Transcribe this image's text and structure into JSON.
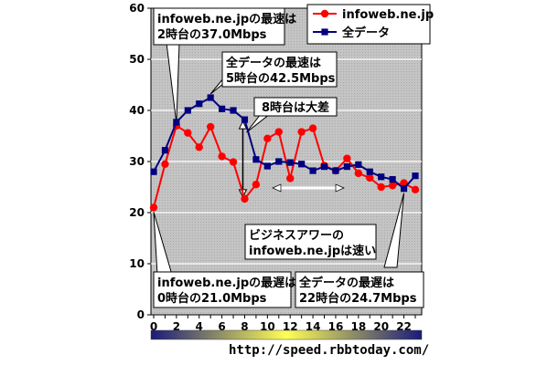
{
  "chart_data": {
    "type": "line",
    "x": [
      0,
      1,
      2,
      3,
      4,
      5,
      6,
      7,
      8,
      9,
      10,
      11,
      12,
      13,
      14,
      15,
      16,
      17,
      18,
      19,
      20,
      21,
      22,
      23
    ],
    "ylim": [
      0,
      60
    ],
    "xlim": [
      0,
      23
    ],
    "y_ticks": [
      0,
      10,
      20,
      30,
      40,
      50,
      60
    ],
    "x_ticks": [
      0,
      2,
      4,
      6,
      8,
      10,
      12,
      14,
      16,
      18,
      20,
      22
    ],
    "grid": true,
    "legend_position": "top-right",
    "series": [
      {
        "name": "infoweb.ne.jp",
        "color": "#ff0000",
        "marker": "circle",
        "values": [
          21.0,
          29.5,
          37.0,
          35.6,
          32.8,
          36.8,
          31.0,
          29.9,
          22.7,
          25.5,
          34.5,
          35.8,
          26.7,
          35.8,
          36.5,
          29.2,
          28.2,
          30.6,
          27.7,
          26.8,
          25.0,
          25.3,
          25.8,
          24.5
        ]
      },
      {
        "name": "全データ",
        "color": "#000080",
        "marker": "square",
        "values": [
          28.0,
          32.2,
          37.7,
          40.0,
          41.3,
          42.5,
          40.3,
          40.0,
          38.2,
          30.4,
          29.1,
          30.0,
          29.8,
          29.5,
          28.2,
          29.0,
          28.2,
          29.0,
          29.4,
          28.0,
          27.0,
          26.5,
          24.7,
          27.2
        ]
      }
    ],
    "annotations": [
      {
        "line1": "infoweb.ne.jpの最速は",
        "line2": "2時台の37.0Mbps"
      },
      {
        "line1": "全データの最速は",
        "line2": "5時台の42.5Mbps"
      },
      {
        "line1": "8時台は大差"
      },
      {
        "line1": "ビジネスアワーの",
        "line2": "infoweb.ne.jpは速い"
      },
      {
        "line1": "infoweb.ne.jpの最遅は",
        "line2": "0時台の21.0Mbps"
      },
      {
        "line1": "全データの最遅は",
        "line2": "22時台の24.7Mbps"
      }
    ],
    "colorbar": {
      "colors": [
        "#1a1a7a",
        "#ffff55",
        "#1a1a7a"
      ]
    },
    "colors": {
      "plot_bg": "#bebebe",
      "grid": "#ffffff",
      "callout_bg": "#ffffff"
    }
  },
  "footer": {
    "url": "http://speed.rbbtoday.com/"
  }
}
